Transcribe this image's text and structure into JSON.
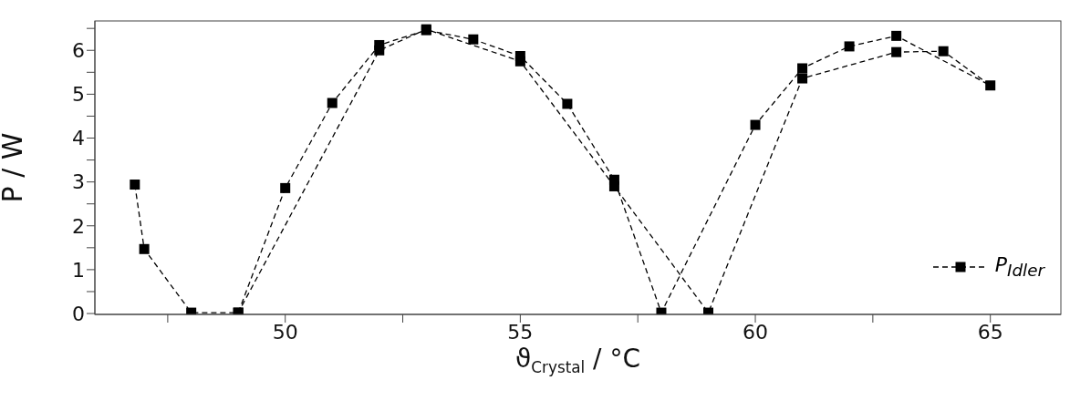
{
  "chart_data": {
    "type": "line",
    "xlabel": "ϑ$_{Crystal}$ / °C",
    "ylabel": "P / W",
    "xlim": [
      45.95,
      66.5
    ],
    "xticks": [
      {
        "value": 47.5,
        "label": null
      },
      50,
      {
        "value": 52.5,
        "label": null
      },
      55,
      {
        "value": 57.5,
        "label": null
      },
      60,
      {
        "value": 62.5,
        "label": null
      },
      65
    ],
    "ylim": [
      -0.02,
      6.67
    ],
    "yticks": [
      0,
      {
        "value": 0.5,
        "label": null
      },
      1,
      {
        "value": 1.5,
        "label": null
      },
      2,
      {
        "value": 2.5,
        "label": null
      },
      3,
      {
        "value": 3.5,
        "label": null
      },
      4,
      {
        "value": 4.5,
        "label": null
      },
      5,
      {
        "value": 5.5,
        "label": null
      },
      6,
      {
        "value": 6.5,
        "label": null
      }
    ],
    "grid": false,
    "legend": "bottom right",
    "marker": "square",
    "line_style": "dashed",
    "series": [
      {
        "name": "P$_{Idler}$",
        "color": "#000000",
        "x": [
          46.8,
          47,
          48,
          49,
          50,
          51,
          52,
          53,
          54,
          55,
          56,
          57,
          58,
          60,
          61,
          62,
          63,
          65,
          64,
          63,
          61,
          59,
          57,
          55,
          53,
          52,
          49
        ],
        "values": [
          2.94,
          1.47,
          0.02,
          0.02,
          2.86,
          4.8,
          6.12,
          6.46,
          6.25,
          5.87,
          4.78,
          3.05,
          0.02,
          4.3,
          5.59,
          6.09,
          6.33,
          5.2,
          5.98,
          5.96,
          5.36,
          0.02,
          2.9,
          5.75,
          6.48,
          6.0,
          0.02
        ]
      }
    ]
  }
}
